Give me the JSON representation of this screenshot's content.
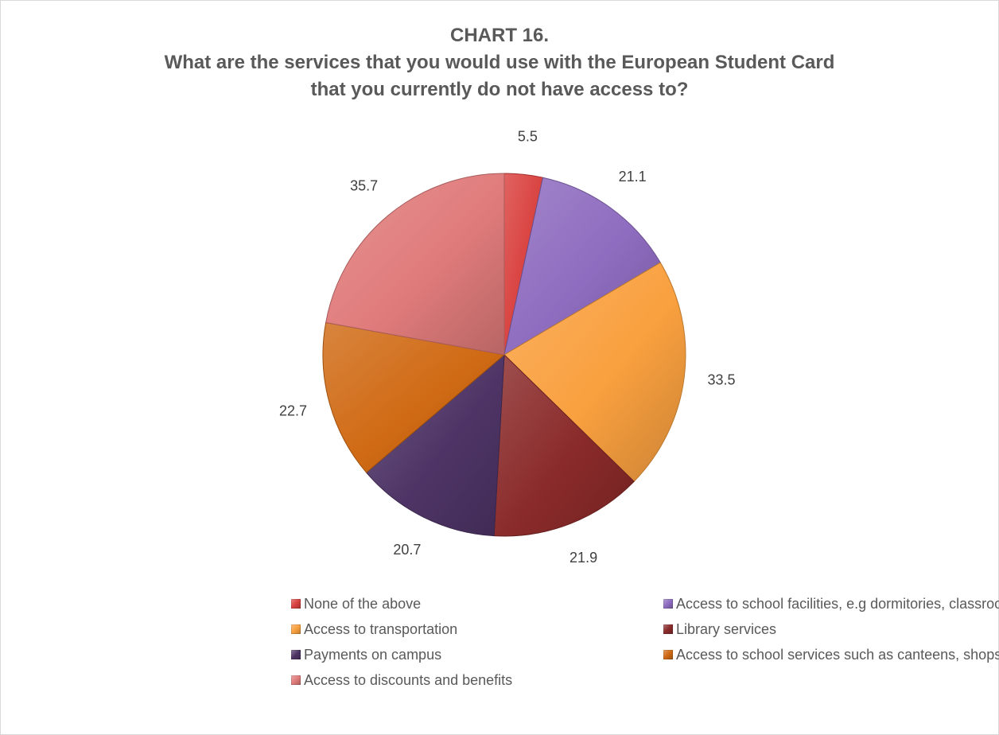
{
  "chart_data": {
    "type": "pie",
    "title_lines": [
      "CHART 16.",
      "What are the services that you would use with the European Student Card",
      "that you currently do not have access to?"
    ],
    "categories": [
      "None of the above",
      "Access to school facilities, e.g dormitories, classrooms",
      "Access to transportation",
      "Library services",
      "Payments on campus",
      "Access to school services such as canteens, shops etc.",
      "Access to discounts and benefits"
    ],
    "values": [
      5.5,
      21.1,
      33.5,
      21.9,
      20.7,
      22.7,
      35.7
    ],
    "value_labels": [
      "5.5",
      "21.1",
      "33.5",
      "21.9",
      "20.7",
      "22.7",
      "35.7"
    ],
    "colors": [
      "#d9413e",
      "#8e6cbf",
      "#f9a03f",
      "#8a2a2a",
      "#4e3466",
      "#d06a14",
      "#e07b7b"
    ],
    "legend_position": "bottom"
  }
}
